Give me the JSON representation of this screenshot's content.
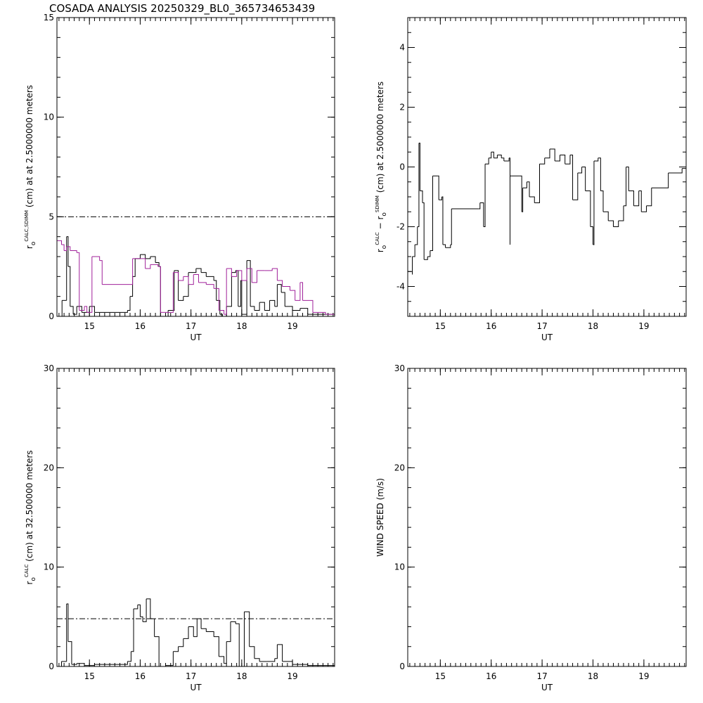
{
  "chart_data": [
    {
      "type": "line",
      "title": "COSADA ANALYSIS 20250329_BL0_365734653439",
      "xlabel": "UT",
      "ylabel": [
        {
          "text": "r"
        },
        {
          "text": "o",
          "pos": "sub"
        },
        {
          "text": "CALC,SDIMM",
          "pos": "sup"
        },
        {
          "text": " (cm) at  at 2.5000000 meters"
        }
      ],
      "xlim": [
        14.36,
        19.83
      ],
      "xticks": [
        15,
        16,
        17,
        18,
        19
      ],
      "x_minor_step": 0.1,
      "ylim": [
        0,
        15
      ],
      "yticks": [
        0,
        5,
        10,
        15
      ],
      "y_minor_step": 1,
      "step": true,
      "hline": 5,
      "series": [
        {
          "color": "#000000",
          "x": [
            14.36,
            14.46,
            14.55,
            14.55,
            14.58,
            14.62,
            14.68,
            14.75,
            14.85,
            15.0,
            15.1,
            15.5,
            15.75,
            15.8,
            15.85,
            15.9,
            16.0,
            16.1,
            16.2,
            16.3,
            16.37,
            16.4,
            16.55,
            16.67,
            16.75,
            16.85,
            16.95,
            17.1,
            17.2,
            17.3,
            17.45,
            17.5,
            17.57,
            17.62,
            17.7,
            17.8,
            17.88,
            17.93,
            17.98,
            18.0,
            18.1,
            18.17,
            18.25,
            18.35,
            18.45,
            18.55,
            18.65,
            18.7,
            18.78,
            18.85,
            19.0,
            19.15,
            19.3,
            19.83
          ],
          "values": [
            0,
            0.8,
            0.8,
            4.0,
            2.5,
            0.5,
            0.1,
            0.5,
            0.2,
            0.5,
            0.2,
            0.2,
            0.3,
            1.0,
            2.0,
            2.9,
            3.1,
            2.9,
            3.0,
            2.7,
            2.5,
            0,
            0.3,
            2.3,
            0.8,
            1.0,
            2.2,
            2.4,
            2.2,
            2.0,
            1.8,
            0.8,
            0.1,
            0,
            0.5,
            2.2,
            2.3,
            0.5,
            1.8,
            0.1,
            2.8,
            0.5,
            0.3,
            0.7,
            0.3,
            0.8,
            0.5,
            1.6,
            1.2,
            0.5,
            0.3,
            0.4,
            0.1,
            0
          ]
        },
        {
          "color": "#a0209a",
          "x": [
            14.36,
            14.45,
            14.5,
            14.55,
            14.62,
            14.75,
            14.8,
            14.9,
            14.95,
            15.05,
            15.2,
            15.25,
            15.8,
            15.85,
            16.0,
            16.1,
            16.2,
            16.35,
            16.4,
            16.6,
            16.65,
            16.75,
            16.85,
            16.95,
            17.05,
            17.15,
            17.3,
            17.45,
            17.55,
            17.65,
            17.7,
            17.8,
            17.9,
            18.0,
            18.1,
            18.2,
            18.3,
            18.45,
            18.6,
            18.7,
            18.8,
            18.95,
            19.05,
            19.15,
            19.2,
            19.4,
            19.65,
            19.83
          ],
          "values": [
            3.8,
            3.6,
            3.3,
            3.5,
            3.3,
            3.2,
            0.3,
            0.5,
            0.2,
            3.0,
            2.8,
            1.6,
            1.6,
            2.9,
            2.9,
            2.4,
            2.6,
            2.5,
            0.2,
            0.2,
            2.2,
            1.8,
            2.0,
            1.6,
            2.1,
            1.7,
            1.6,
            1.4,
            0.3,
            0.1,
            2.4,
            2.0,
            2.3,
            1.8,
            2.4,
            1.7,
            2.3,
            2.3,
            2.4,
            1.8,
            1.5,
            1.3,
            0.8,
            1.7,
            0.8,
            0.2,
            0.1,
            0
          ]
        }
      ]
    },
    {
      "type": "line",
      "xlabel": "UT",
      "ylabel": [
        {
          "text": "r"
        },
        {
          "text": "o",
          "pos": "sub"
        },
        {
          "text": "CALC",
          "pos": "sup"
        },
        {
          "text": " − r"
        },
        {
          "text": "o",
          "pos": "sub"
        },
        {
          "text": "SDIMM",
          "pos": "sup"
        },
        {
          "text": " (cm) at 2.5000000 meters"
        }
      ],
      "xlim": [
        14.36,
        19.83
      ],
      "xticks": [
        15,
        16,
        17,
        18,
        19
      ],
      "x_minor_step": 0.1,
      "ylim": [
        -5,
        5
      ],
      "yticks": [
        -4,
        -2,
        0,
        2,
        4
      ],
      "y_minor_step": 0.5,
      "step": true,
      "series": [
        {
          "color": "#000000",
          "x": [
            14.36,
            14.45,
            14.45,
            14.5,
            14.55,
            14.58,
            14.6,
            14.65,
            14.68,
            14.75,
            14.8,
            14.85,
            14.95,
            14.97,
            15.03,
            15.05,
            15.1,
            15.2,
            15.22,
            15.75,
            15.78,
            15.85,
            15.88,
            15.95,
            16.0,
            16.05,
            16.12,
            16.2,
            16.25,
            16.35,
            16.37,
            16.37,
            16.55,
            16.6,
            16.62,
            16.7,
            16.75,
            16.85,
            16.95,
            17.05,
            17.15,
            17.25,
            17.35,
            17.45,
            17.55,
            17.6,
            17.7,
            17.78,
            17.85,
            17.95,
            18.0,
            18.02,
            18.1,
            18.15,
            18.2,
            18.3,
            18.4,
            18.5,
            18.6,
            18.65,
            18.7,
            18.8,
            18.9,
            18.95,
            19.05,
            19.15,
            19.45,
            19.48,
            19.75,
            19.83
          ],
          "values": [
            -3.5,
            -3.6,
            -3.0,
            -2.6,
            -2.0,
            0.8,
            -0.8,
            -1.2,
            -3.1,
            -3.0,
            -2.8,
            -0.3,
            -0.3,
            -1.1,
            -1.0,
            -2.6,
            -2.7,
            -2.6,
            -1.4,
            -1.4,
            -1.2,
            -2.0,
            0.1,
            0.3,
            0.5,
            0.3,
            0.4,
            0.3,
            0.2,
            0.3,
            -2.6,
            -0.3,
            -0.3,
            -1.5,
            -0.7,
            -0.5,
            -1.0,
            -1.2,
            0.1,
            0.3,
            0.6,
            0.2,
            0.4,
            0.1,
            0.4,
            -1.1,
            -0.2,
            0.0,
            -0.8,
            -2.0,
            -2.6,
            0.2,
            0.3,
            -0.8,
            -1.5,
            -1.8,
            -2.0,
            -1.8,
            -1.3,
            0.0,
            -0.8,
            -1.3,
            -0.8,
            -1.5,
            -1.3,
            -0.7,
            -0.7,
            -0.2,
            -0.05,
            0
          ]
        }
      ]
    },
    {
      "type": "line",
      "xlabel": "UT",
      "ylabel": [
        {
          "text": "r"
        },
        {
          "text": "o",
          "pos": "sub"
        },
        {
          "text": "CALC",
          "pos": "sup"
        },
        {
          "text": " (cm) at 32.500000 meters"
        }
      ],
      "xlim": [
        14.36,
        19.83
      ],
      "xticks": [
        15,
        16,
        17,
        18,
        19
      ],
      "x_minor_step": 0.1,
      "ylim": [
        0,
        30
      ],
      "yticks": [
        0,
        10,
        20,
        30
      ],
      "y_minor_step": 2,
      "step": true,
      "hline": 4.8,
      "series": [
        {
          "color": "#000000",
          "x": [
            14.36,
            14.45,
            14.55,
            14.55,
            14.58,
            14.65,
            14.75,
            14.9,
            15.1,
            15.5,
            15.75,
            15.82,
            15.87,
            15.95,
            16.0,
            16.05,
            16.12,
            16.2,
            16.28,
            16.37,
            16.5,
            16.65,
            16.75,
            16.85,
            16.95,
            17.05,
            17.12,
            17.2,
            17.3,
            17.45,
            17.55,
            17.65,
            17.7,
            17.78,
            17.88,
            17.95,
            18.0,
            18.05,
            18.15,
            18.25,
            18.35,
            18.5,
            18.65,
            18.7,
            18.8,
            19.0,
            19.3,
            19.83
          ],
          "values": [
            0,
            0.5,
            0.5,
            6.3,
            2.5,
            0.2,
            0.3,
            0.1,
            0.2,
            0.2,
            0.5,
            1.5,
            5.8,
            6.2,
            5.0,
            4.5,
            6.8,
            4.8,
            3.0,
            0,
            0.1,
            1.5,
            2.0,
            2.8,
            4.0,
            3.0,
            4.8,
            3.8,
            3.5,
            3.0,
            1.0,
            0.3,
            2.5,
            4.5,
            4.3,
            0,
            0,
            5.5,
            2.0,
            0.8,
            0.5,
            0.5,
            0.8,
            2.2,
            0.5,
            0.2,
            0.1,
            0
          ]
        }
      ]
    },
    {
      "type": "line",
      "xlabel": "UT",
      "ylabel": [
        {
          "text": "WIND SPEED (m/s)"
        }
      ],
      "xlim": [
        14.36,
        19.83
      ],
      "xticks": [
        15,
        16,
        17,
        18,
        19
      ],
      "x_minor_step": 0.1,
      "ylim": [
        0,
        30
      ],
      "yticks": [
        0,
        10,
        20,
        30
      ],
      "y_minor_step": 2,
      "step": true,
      "series": []
    }
  ]
}
